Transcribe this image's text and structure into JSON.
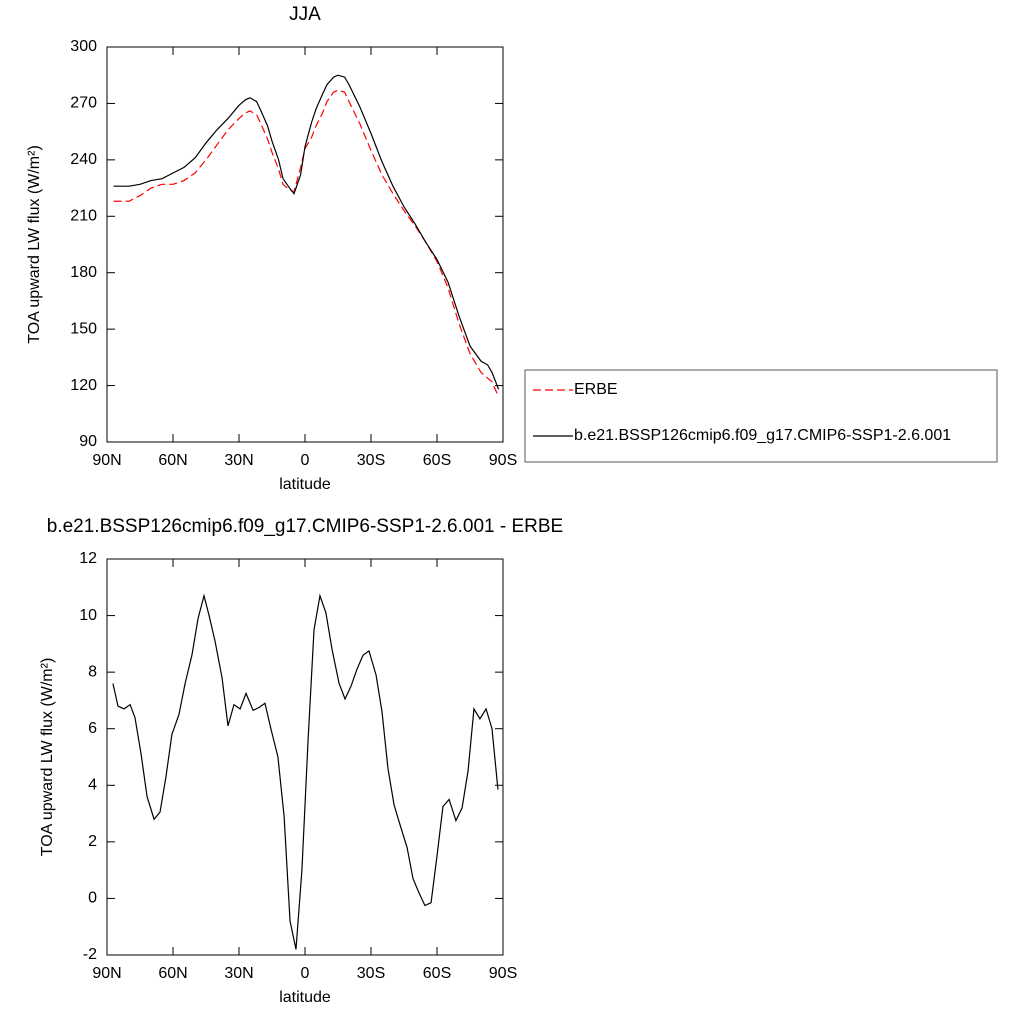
{
  "chart_data": [
    {
      "type": "line",
      "title": "JJA",
      "x_label": "latitude",
      "y_label": "TOA upward LW flux (W/m²)",
      "x": [
        87,
        80,
        75,
        70,
        65,
        60,
        55,
        50,
        45,
        40,
        35,
        30,
        27,
        25,
        22,
        20,
        17,
        15,
        12,
        10,
        7,
        5,
        2,
        0,
        -3,
        -5,
        -8,
        -10,
        -13,
        -15,
        -18,
        -20,
        -25,
        -30,
        -35,
        -40,
        -45,
        -50,
        -55,
        -60,
        -65,
        -70,
        -75,
        -80,
        -83,
        -85,
        -88
      ],
      "series": [
        {
          "name": "ERBE",
          "color": "#ff0000",
          "dashed": true,
          "values": [
            218,
            218,
            221,
            225,
            227,
            227,
            229,
            233,
            240,
            248,
            256,
            262,
            265,
            266,
            264,
            259,
            251,
            244,
            235,
            227,
            224,
            223,
            236,
            246,
            252,
            258,
            265,
            271,
            276,
            277,
            276,
            271,
            259,
            245,
            232,
            222,
            213,
            205,
            196,
            186,
            172,
            153,
            137,
            127,
            124,
            122,
            114
          ]
        },
        {
          "name": "b.e21.BSSP126cmip6.f09_g17.CMIP6-SSP1-2.6.001",
          "color": "#000000",
          "dashed": false,
          "values": [
            226,
            226,
            227,
            229,
            230,
            233,
            236,
            241,
            249,
            256,
            262,
            269,
            272,
            273,
            271,
            266,
            258,
            250,
            240,
            230,
            225,
            222,
            232,
            247,
            260,
            267,
            275,
            280,
            284,
            285,
            284,
            280,
            268,
            254,
            239,
            226,
            215,
            206,
            196,
            187,
            175,
            157,
            141,
            133,
            131,
            127,
            118
          ]
        }
      ],
      "xlim": [
        90,
        -90
      ],
      "xticks": [
        {
          "value": 90,
          "label": "90N"
        },
        {
          "value": 60,
          "label": "60N"
        },
        {
          "value": 30,
          "label": "30N"
        },
        0,
        {
          "value": -30,
          "label": "30S"
        },
        {
          "value": -60,
          "label": "60S"
        },
        {
          "value": -90,
          "label": "90S"
        }
      ],
      "ylim": [
        90,
        300
      ],
      "yticks": [
        90,
        120,
        150,
        180,
        210,
        240,
        270,
        300
      ],
      "legend": "right"
    },
    {
      "type": "line",
      "title": "b.e21.BSSP126cmip6.f09_g17.CMIP6-SSP1-2.6.001 - ERBE",
      "x_label": "latitude",
      "y_label": "TOA upward LW flux (W/m²)",
      "x": [
        87.3,
        85,
        82.3,
        79.5,
        77.3,
        74.5,
        71.8,
        68.6,
        65.9,
        63.2,
        60.5,
        57.3,
        54.5,
        51.4,
        48.6,
        45.9,
        43.6,
        40.9,
        37.7,
        35,
        32.3,
        29.5,
        26.8,
        23.6,
        20.9,
        18.2,
        15.5,
        12.3,
        9.5,
        6.8,
        4.1,
        1.4,
        -1.4,
        -4.1,
        -6.8,
        -9.5,
        -12.3,
        -15.5,
        -18.2,
        -20.9,
        -23.6,
        -26.4,
        -29.1,
        -32.3,
        -35,
        -37.7,
        -40.5,
        -43.6,
        -46.4,
        -49.1,
        -51.8,
        -54.5,
        -57.3,
        -60,
        -62.7,
        -65.5,
        -68.6,
        -71.4,
        -74.1,
        -76.8,
        -79.5,
        -82.3,
        -85,
        -87.7
      ],
      "series": [
        {
          "color": "#000000",
          "dashed": false,
          "values": [
            7.6,
            6.8,
            6.7,
            6.85,
            6.4,
            5.1,
            3.6,
            2.8,
            3.05,
            4.3,
            5.8,
            6.5,
            7.6,
            8.6,
            9.9,
            10.7,
            10.0,
            9.1,
            7.8,
            6.1,
            6.85,
            6.7,
            7.25,
            6.65,
            6.75,
            6.9,
            6.0,
            5.0,
            2.9,
            -0.8,
            -1.8,
            1.0,
            5.6,
            9.5,
            10.7,
            10.1,
            8.8,
            7.6,
            7.05,
            7.5,
            8.1,
            8.6,
            8.75,
            7.9,
            6.6,
            4.6,
            3.3,
            2.5,
            1.8,
            0.7,
            0.2,
            -0.25,
            -0.15,
            1.5,
            3.25,
            3.5,
            2.75,
            3.2,
            4.5,
            6.7,
            6.35,
            6.7,
            6.0,
            3.85
          ]
        }
      ],
      "xlim": [
        90,
        -90
      ],
      "xticks": [
        {
          "value": 90,
          "label": "90N"
        },
        {
          "value": 60,
          "label": "60N"
        },
        {
          "value": 30,
          "label": "30N"
        },
        0,
        {
          "value": -30,
          "label": "30S"
        },
        {
          "value": -60,
          "label": "60S"
        },
        {
          "value": -90,
          "label": "90S"
        }
      ],
      "ylim": [
        -2,
        12
      ],
      "yticks": [
        -2,
        0,
        2,
        4,
        6,
        8,
        10,
        12
      ]
    }
  ]
}
